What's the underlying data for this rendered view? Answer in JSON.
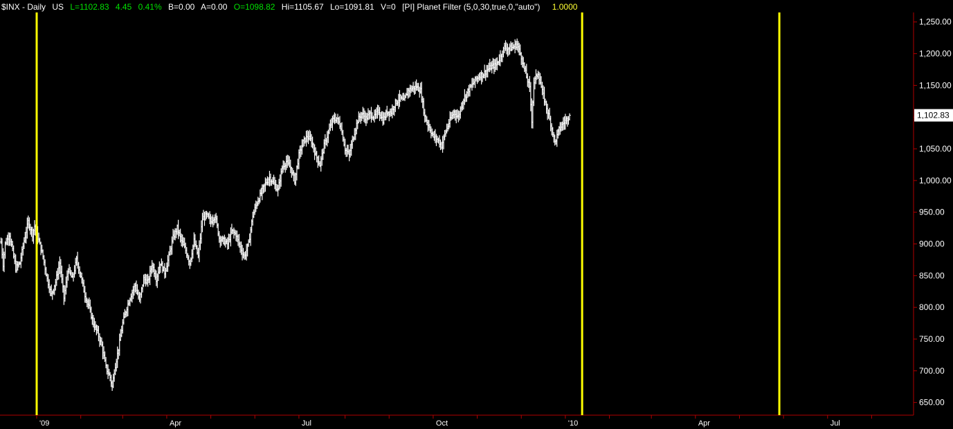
{
  "header": {
    "symbol": "$INX - Daily",
    "market": "US",
    "last": "L=1102.83",
    "change": "4.45",
    "change_pct": "0.41%",
    "bid": "B=0.00",
    "ask": "A=0.00",
    "open": "O=1098.82",
    "high": "Hi=1105.67",
    "low": "Lo=1091.81",
    "volume": "V=0",
    "indicator": "[PI] Planet Filter (5,0,30,true,0,\"auto\")",
    "indicator_value": "1.0000"
  },
  "colors": {
    "background": "#000000",
    "bars": "#ffffff",
    "planet_lines": "#ffff00",
    "grid": "#7a0000",
    "axis": "#b00000",
    "green": "#00e000",
    "yellow": "#ffff33"
  },
  "chart_data": {
    "type": "bar",
    "style": "ohlc",
    "ylim": [
      630,
      1265
    ],
    "y_ticks": [
      650,
      700,
      750,
      800,
      850,
      900,
      950,
      1000,
      1050,
      1100,
      1150,
      1200,
      1250
    ],
    "y_tick_labels": [
      "650.00",
      "700.00",
      "750.00",
      "800.00",
      "850.00",
      "900.00",
      "950.00",
      "1,000.00",
      "1,050.00",
      "1,100.00",
      "1,150.00",
      "1,200.00",
      "1,250.00"
    ],
    "x_tick_labels": [
      {
        "label": "'09",
        "x": 11
      },
      {
        "label": "Apr",
        "x": 73
      },
      {
        "label": "Jul",
        "x": 136
      },
      {
        "label": "Oct",
        "x": 200
      },
      {
        "label": "'10",
        "x": 263
      },
      {
        "label": "Apr",
        "x": 325
      },
      {
        "label": "Jul",
        "x": 388
      }
    ],
    "month_gridlines": [
      11,
      32,
      52,
      73,
      94,
      115,
      136,
      158,
      179,
      200,
      221,
      242,
      263,
      284,
      304,
      325,
      346,
      367,
      388,
      409
    ],
    "planet_lines_x": [
      11,
      271,
      365
    ],
    "last_value": 1102.83,
    "last_value_label": "1,102.83",
    "x_start": -6,
    "price_keypoints": [
      [
        -6,
        903
      ],
      [
        -5,
        868
      ],
      [
        -4,
        900
      ],
      [
        -2,
        915
      ],
      [
        0,
        880
      ],
      [
        1,
        862
      ],
      [
        3,
        870
      ],
      [
        5,
        905
      ],
      [
        7,
        935
      ],
      [
        9,
        915
      ],
      [
        10,
        928
      ],
      [
        12,
        905
      ],
      [
        14,
        880
      ],
      [
        16,
        845
      ],
      [
        18,
        820
      ],
      [
        20,
        840
      ],
      [
        22,
        870
      ],
      [
        24,
        815
      ],
      [
        26,
        860
      ],
      [
        28,
        845
      ],
      [
        30,
        875
      ],
      [
        32,
        850
      ],
      [
        34,
        820
      ],
      [
        36,
        800
      ],
      [
        38,
        775
      ],
      [
        40,
        760
      ],
      [
        42,
        740
      ],
      [
        44,
        705
      ],
      [
        46,
        690
      ],
      [
        47,
        675
      ],
      [
        48,
        700
      ],
      [
        50,
        735
      ],
      [
        52,
        775
      ],
      [
        54,
        800
      ],
      [
        56,
        820
      ],
      [
        58,
        835
      ],
      [
        60,
        810
      ],
      [
        62,
        845
      ],
      [
        64,
        840
      ],
      [
        66,
        868
      ],
      [
        68,
        845
      ],
      [
        70,
        870
      ],
      [
        72,
        855
      ],
      [
        74,
        880
      ],
      [
        76,
        910
      ],
      [
        78,
        925
      ],
      [
        80,
        905
      ],
      [
        82,
        890
      ],
      [
        84,
        870
      ],
      [
        86,
        905
      ],
      [
        88,
        880
      ],
      [
        90,
        940
      ],
      [
        92,
        945
      ],
      [
        94,
        935
      ],
      [
        96,
        945
      ],
      [
        98,
        910
      ],
      [
        100,
        905
      ],
      [
        102,
        900
      ],
      [
        104,
        920
      ],
      [
        106,
        915
      ],
      [
        108,
        895
      ],
      [
        110,
        880
      ],
      [
        112,
        900
      ],
      [
        114,
        945
      ],
      [
        116,
        965
      ],
      [
        118,
        980
      ],
      [
        120,
        995
      ],
      [
        122,
        1005
      ],
      [
        124,
        995
      ],
      [
        126,
        985
      ],
      [
        128,
        1020
      ],
      [
        130,
        1030
      ],
      [
        132,
        1020
      ],
      [
        134,
        1000
      ],
      [
        136,
        1040
      ],
      [
        138,
        1060
      ],
      [
        140,
        1070
      ],
      [
        142,
        1062
      ],
      [
        144,
        1040
      ],
      [
        146,
        1025
      ],
      [
        148,
        1055
      ],
      [
        150,
        1075
      ],
      [
        152,
        1095
      ],
      [
        154,
        1098
      ],
      [
        156,
        1085
      ],
      [
        158,
        1050
      ],
      [
        160,
        1040
      ],
      [
        162,
        1070
      ],
      [
        164,
        1095
      ],
      [
        166,
        1105
      ],
      [
        168,
        1098
      ],
      [
        170,
        1105
      ],
      [
        172,
        1100
      ],
      [
        174,
        1110
      ],
      [
        176,
        1095
      ],
      [
        178,
        1108
      ],
      [
        180,
        1108
      ],
      [
        182,
        1122
      ],
      [
        184,
        1130
      ],
      [
        186,
        1125
      ],
      [
        188,
        1142
      ],
      [
        190,
        1145
      ],
      [
        192,
        1148
      ],
      [
        194,
        1142
      ],
      [
        196,
        1100
      ],
      [
        198,
        1085
      ],
      [
        200,
        1070
      ],
      [
        202,
        1065
      ],
      [
        204,
        1055
      ],
      [
        206,
        1078
      ],
      [
        208,
        1095
      ],
      [
        210,
        1108
      ],
      [
        212,
        1100
      ],
      [
        214,
        1125
      ],
      [
        216,
        1138
      ],
      [
        218,
        1148
      ],
      [
        220,
        1158
      ],
      [
        222,
        1165
      ],
      [
        224,
        1168
      ],
      [
        226,
        1175
      ],
      [
        228,
        1180
      ],
      [
        230,
        1182
      ],
      [
        232,
        1195
      ],
      [
        234,
        1210
      ],
      [
        236,
        1208
      ],
      [
        238,
        1210
      ],
      [
        240,
        1215
      ],
      [
        242,
        1195
      ],
      [
        244,
        1170
      ],
      [
        246,
        1145
      ],
      [
        247,
        1095
      ],
      [
        248,
        1155
      ],
      [
        250,
        1170
      ],
      [
        252,
        1140
      ],
      [
        254,
        1115
      ],
      [
        256,
        1090
      ],
      [
        258,
        1060
      ],
      [
        259,
        1070
      ],
      [
        260,
        1080
      ],
      [
        262,
        1090
      ],
      [
        264,
        1098
      ],
      [
        265,
        1102.83
      ]
    ]
  }
}
